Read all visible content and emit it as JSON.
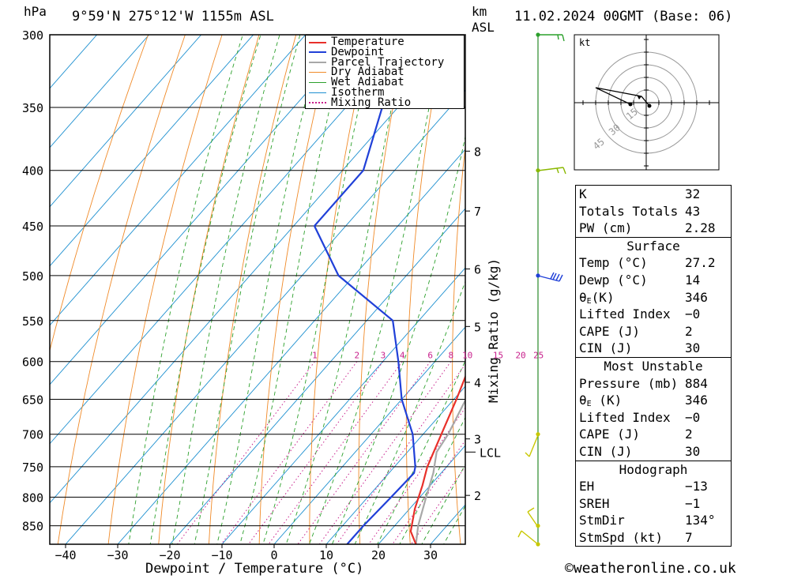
{
  "header": {
    "hpa_unit": "hPa",
    "location": "9°59'N  275°12'W  1155m  ASL",
    "km_unit": "km",
    "asl": "ASL",
    "datetime": "11.02.2024  00GMT  (Base: 06)"
  },
  "chart_data": {
    "type": "skew-t log-p",
    "xlabel": "Dewpoint / Temperature (°C)",
    "ylabel_left": "hPa",
    "ylabel_right": "Mixing Ratio (g/kg)",
    "pressure_levels": [
      300,
      350,
      400,
      450,
      500,
      550,
      600,
      650,
      700,
      750,
      800,
      850
    ],
    "pressure_range": [
      300,
      884
    ],
    "temp_ticks": [
      -40,
      -30,
      -20,
      -10,
      0,
      10,
      20,
      30
    ],
    "km_ticks": [
      {
        "km": "8",
        "p": 384
      },
      {
        "km": "7",
        "p": 436
      },
      {
        "km": "6",
        "p": 493
      },
      {
        "km": "5",
        "p": 557
      },
      {
        "km": "4",
        "p": 627
      },
      {
        "km": "3",
        "p": 707
      },
      {
        "km": "2",
        "p": 797
      }
    ],
    "lcl": {
      "label": "LCL",
      "p": 727
    },
    "mixing_ratio_labels": [
      "1",
      "2",
      "3",
      "4",
      "6",
      "8",
      "10",
      "15",
      "20",
      "25"
    ],
    "legend": [
      "Temperature",
      "Dewpoint",
      "Parcel Trajectory",
      "Dry Adiabat",
      "Wet Adiabat",
      "Isotherm",
      "Mixing Ratio"
    ],
    "series": [
      {
        "name": "Temperature",
        "color": "#e8302a",
        "points": [
          [
            884,
            27.2
          ],
          [
            860,
            24
          ],
          [
            820,
            21
          ],
          [
            780,
            18.5
          ],
          [
            750,
            16.3
          ],
          [
            700,
            13.5
          ],
          [
            650,
            10.5
          ],
          [
            600,
            7
          ],
          [
            550,
            2.5
          ],
          [
            500,
            -2.5
          ],
          [
            450,
            -8
          ],
          [
            400,
            -14
          ],
          [
            350,
            -22
          ],
          [
            330,
            -26
          ],
          [
            300,
            -33
          ]
        ]
      },
      {
        "name": "Dewpoint",
        "color": "#2040d8",
        "points": [
          [
            884,
            14
          ],
          [
            850,
            14
          ],
          [
            800,
            14.5
          ],
          [
            760,
            14.8
          ],
          [
            750,
            14
          ],
          [
            700,
            8
          ],
          [
            650,
            0
          ],
          [
            600,
            -7
          ],
          [
            550,
            -15
          ],
          [
            500,
            -33
          ],
          [
            450,
            -46
          ],
          [
            400,
            -46
          ],
          [
            350,
            -53
          ],
          [
            300,
            -67
          ]
        ]
      },
      {
        "name": "Parcel Trajectory",
        "color": "#a8a8a8",
        "points": [
          [
            884,
            27.2
          ],
          [
            850,
            24.5
          ],
          [
            800,
            21.2
          ],
          [
            760,
            18.5
          ],
          [
            727,
            15.6
          ],
          [
            700,
            14.8
          ],
          [
            650,
            12.3
          ],
          [
            600,
            9.2
          ],
          [
            550,
            5.2
          ],
          [
            500,
            0.3
          ],
          [
            450,
            -5.8
          ],
          [
            400,
            -13.2
          ],
          [
            350,
            -22.5
          ],
          [
            300,
            -33.5
          ]
        ]
      }
    ]
  },
  "hodograph": {
    "unit": "kt",
    "rings": [
      "15",
      "30",
      "45"
    ]
  },
  "indices": {
    "k_label": "K",
    "k": "32",
    "tt_label": "Totals Totals",
    "tt": "43",
    "pw_label": "PW (cm)",
    "pw": "2.28"
  },
  "surface": {
    "title": "Surface",
    "temp_label": "Temp (°C)",
    "temp": "27.2",
    "dewp_label": "Dewp (°C)",
    "dewp": "14",
    "theta_label": "θ",
    "theta_sub": "E",
    "theta_unit": "(K)",
    "theta": "346",
    "li_label": "Lifted Index",
    "li": "−0",
    "cape_label": "CAPE (J)",
    "cape": "2",
    "cin_label": "CIN (J)",
    "cin": "30"
  },
  "most_unstable": {
    "title": "Most Unstable",
    "pressure_label": "Pressure (mb)",
    "pressure": "884",
    "theta_label": "θ",
    "theta_sub": "E",
    "theta_unit": " (K)",
    "theta": "346",
    "li_label": "Lifted Index",
    "li": "−0",
    "cape_label": "CAPE (J)",
    "cape": "2",
    "cin_label": "CIN (J)",
    "cin": "30"
  },
  "hodo_table": {
    "title": "Hodograph",
    "eh_label": "EH",
    "eh": "−13",
    "sreh_label": "SREH",
    "sreh": "−1",
    "stmdir_label": "StmDir",
    "stmdir": "134°",
    "stmspd_label": "StmSpd (kt)",
    "stmspd": "7"
  },
  "footer": {
    "credit": "©weatheronline.co.uk"
  },
  "colors": {
    "temperature": "#e8302a",
    "dewpoint": "#2040d8",
    "parcel": "#a8a8a8",
    "dry_adiabat": "#f08a28",
    "wet_adiabat": "#2ca02c",
    "isotherm": "#1e90d0",
    "mixing_ratio": "#c8208c",
    "wind_station": "#b8b800"
  }
}
